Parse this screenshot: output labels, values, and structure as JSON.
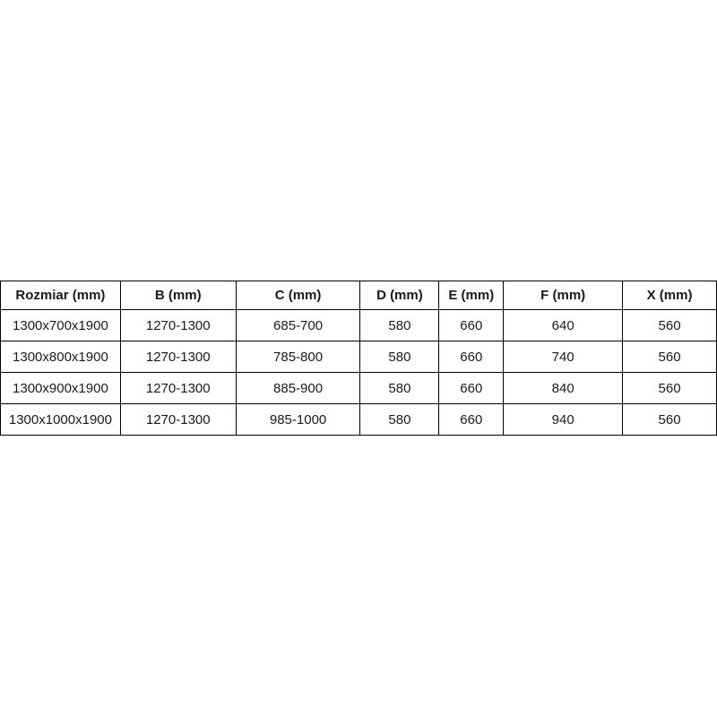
{
  "colors": {
    "background": "#ffffff",
    "border": "#000000",
    "text": "#1a1a1a"
  },
  "chart_data": {
    "type": "table",
    "title": "",
    "columns": [
      "Rozmiar (mm)",
      "B (mm)",
      "C (mm)",
      "D (mm)",
      "E (mm)",
      "F (mm)",
      "X (mm)"
    ],
    "column_widths_pct": [
      16.75,
      16.125,
      17.375,
      11.0,
      9.0,
      16.625,
      13.125
    ],
    "rows": [
      [
        "1300x700x1900",
        "1270-1300",
        "685-700",
        "580",
        "660",
        "640",
        "560"
      ],
      [
        "1300x800x1900",
        "1270-1300",
        "785-800",
        "580",
        "660",
        "740",
        "560"
      ],
      [
        "1300x900x1900",
        "1270-1300",
        "885-900",
        "580",
        "660",
        "840",
        "560"
      ],
      [
        "1300x1000x1900",
        "1270-1300",
        "985-1000",
        "580",
        "660",
        "940",
        "560"
      ]
    ]
  }
}
